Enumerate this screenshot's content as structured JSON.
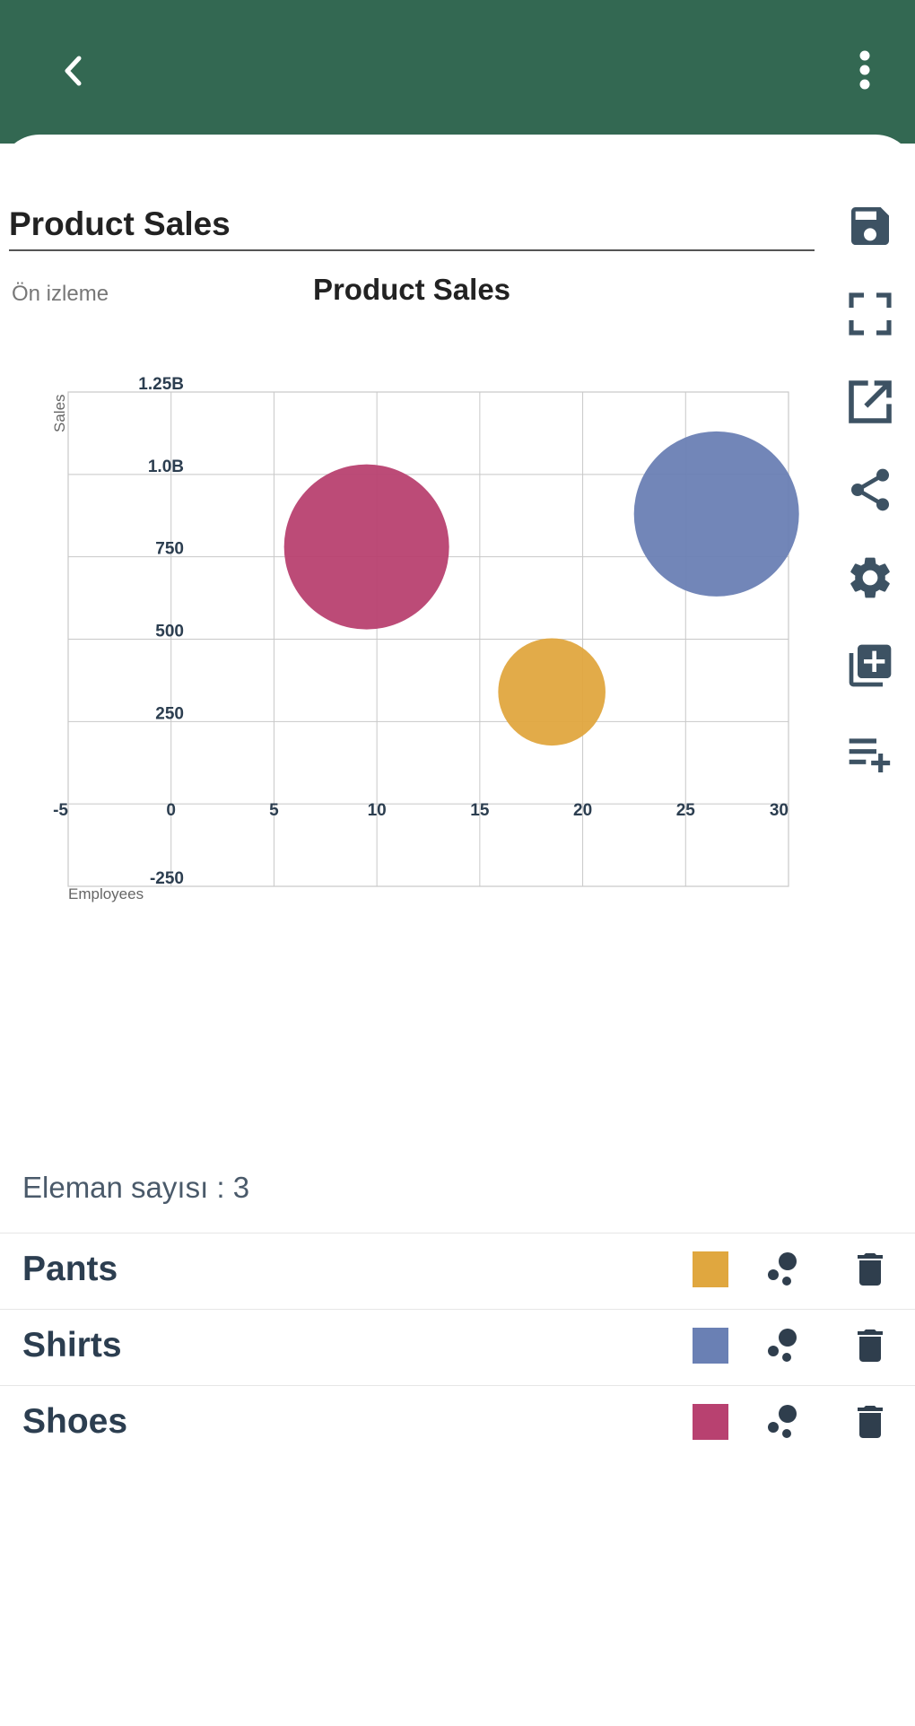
{
  "header": {
    "back_icon": "chevron-left-icon",
    "menu_icon": "more-vertical-icon"
  },
  "editor": {
    "title_value": "Product Sales",
    "preview_label": "Ön izleme"
  },
  "toolbar": {
    "icons": [
      "save-icon",
      "fullscreen-icon",
      "open-external-icon",
      "share-icon",
      "settings-icon",
      "add-library-icon",
      "playlist-add-icon"
    ]
  },
  "chart_data": {
    "type": "scatter",
    "subtype": "bubble",
    "title": "Product Sales",
    "xlabel": "Employees",
    "ylabel": "Sales",
    "xlim": [
      -5,
      30
    ],
    "ylim": [
      -250,
      1250000000
    ],
    "x_ticks": [
      -5,
      0,
      5,
      10,
      15,
      20,
      25,
      30
    ],
    "x_tick_labels": [
      "-5",
      "0",
      "5",
      "10",
      "15",
      "20",
      "25",
      "30"
    ],
    "y_ticks": [
      -250,
      0,
      250,
      500,
      750,
      1000000000,
      1250000000
    ],
    "y_tick_labels": [
      "-250",
      "",
      "250",
      "500",
      "750",
      "1.0B",
      "1.25B"
    ],
    "y_tick_level": [
      -1,
      0,
      1,
      2,
      3,
      4,
      5
    ],
    "grid": true,
    "legend_position": "bottom",
    "series": [
      {
        "name": "Pants",
        "color": "#e0a73f",
        "x": 18.5,
        "y": 340,
        "y_level": 1.36,
        "size": 0.65
      },
      {
        "name": "Shirts",
        "color": "#6a80b4",
        "x": 26.5,
        "y": 880,
        "y_level": 3.52,
        "size": 1.0
      },
      {
        "name": "Shoes",
        "color": "#b84170",
        "x": 9.5,
        "y": 780,
        "y_level": 3.12,
        "size": 1.0
      }
    ]
  },
  "list": {
    "count_label": "Eleman sayısı : 3",
    "items": [
      {
        "name": "Pants",
        "color": "#e0a73f"
      },
      {
        "name": "Shirts",
        "color": "#6a80b4"
      },
      {
        "name": "Shoes",
        "color": "#b84170"
      }
    ]
  }
}
